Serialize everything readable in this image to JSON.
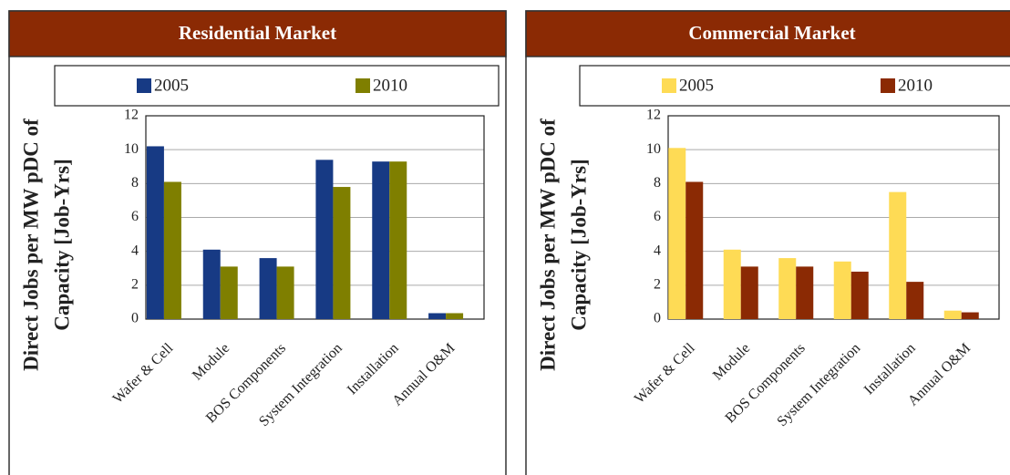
{
  "chart_data": [
    {
      "type": "bar",
      "title": "Residential Market",
      "ylabel": [
        "Direct Jobs per MW pDC of",
        "Capacity [Job-Yrs]"
      ],
      "categories": [
        "Wafer & Cell",
        "Module",
        "BOS Components",
        "System Integration",
        "Installation",
        "Annual O&M"
      ],
      "series": [
        {
          "name": "2005",
          "color": "#173a84",
          "values": [
            10.2,
            4.1,
            3.6,
            9.4,
            9.3,
            0.35
          ]
        },
        {
          "name": "2010",
          "color": "#7f7f00",
          "values": [
            8.1,
            3.1,
            3.1,
            7.8,
            9.3,
            0.35
          ]
        }
      ],
      "ylim": [
        0,
        12
      ],
      "yticks": [
        0,
        2,
        4,
        6,
        8,
        10,
        12
      ],
      "grid": true
    },
    {
      "type": "bar",
      "title": "Commercial Market",
      "ylabel": [
        "Direct Jobs per MW pDC of",
        "Capacity [Job-Yrs]"
      ],
      "categories": [
        "Wafer & Cell",
        "Module",
        "BOS Components",
        "System Integration",
        "Installation",
        "Annual O&M"
      ],
      "series": [
        {
          "name": "2005",
          "color": "#fedb55",
          "values": [
            10.1,
            4.1,
            3.6,
            3.4,
            7.5,
            0.5
          ]
        },
        {
          "name": "2010",
          "color": "#8b2a04",
          "values": [
            8.1,
            3.1,
            3.1,
            2.8,
            2.2,
            0.4
          ]
        }
      ],
      "ylim": [
        0,
        12
      ],
      "yticks": [
        0,
        2,
        4,
        6,
        8,
        10,
        12
      ],
      "grid": true
    }
  ]
}
